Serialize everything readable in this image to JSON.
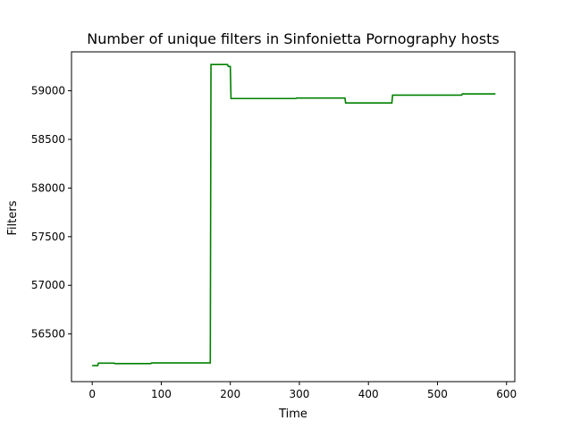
{
  "chart_data": {
    "type": "line",
    "title": "Number of unique filters in Sinfonietta Pornography hosts",
    "xlabel": "Time",
    "ylabel": "Filters",
    "xlim": [
      -30,
      612
    ],
    "ylim": [
      56010,
      59400
    ],
    "xticks": [
      0,
      100,
      200,
      300,
      400,
      500,
      600
    ],
    "yticks": [
      56500,
      57000,
      57500,
      58000,
      58500,
      59000
    ],
    "grid": false,
    "legend": "none",
    "series": [
      {
        "color": "#008000",
        "x": [
          0,
          8,
          9,
          32,
          33,
          85,
          86,
          171,
          172,
          196,
          197,
          200,
          201,
          295,
          296,
          366,
          367,
          434,
          435,
          535,
          536,
          584
        ],
        "y": [
          56175,
          56175,
          56200,
          56200,
          56195,
          56195,
          56202,
          56202,
          59270,
          59270,
          59250,
          59250,
          58920,
          58920,
          58925,
          58925,
          58875,
          58875,
          58955,
          58955,
          58968,
          58968
        ]
      }
    ]
  }
}
